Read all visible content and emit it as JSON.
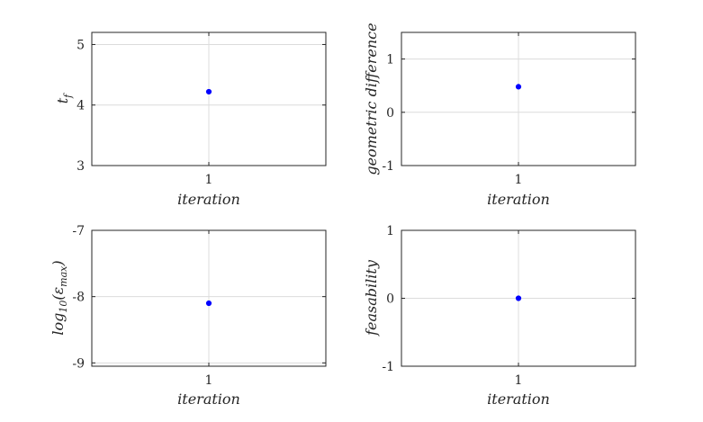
{
  "chart_data": [
    {
      "type": "scatter",
      "xlabel": "iteration",
      "ylabel": "t_f",
      "x_ticks": [
        "1"
      ],
      "y_ticks": [
        "3",
        "4",
        "5"
      ],
      "ylim": [
        3,
        5.2
      ],
      "grid": true,
      "series": [
        {
          "x": [
            1
          ],
          "y": [
            4.22
          ],
          "color": "#0000ff"
        }
      ]
    },
    {
      "type": "scatter",
      "xlabel": "iteration",
      "ylabel": "geometric difference",
      "x_ticks": [
        "1"
      ],
      "y_ticks": [
        "-1",
        "0",
        "1"
      ],
      "ylim": [
        -1,
        1.5
      ],
      "grid": true,
      "series": [
        {
          "x": [
            1
          ],
          "y": [
            0.48
          ],
          "color": "#0000ff"
        }
      ]
    },
    {
      "type": "scatter",
      "xlabel": "iteration",
      "ylabel": "log10(ε_max)",
      "x_ticks": [
        "1"
      ],
      "y_ticks": [
        "-9",
        "-8",
        "-7"
      ],
      "ylim": [
        -9.05,
        -7
      ],
      "grid": true,
      "series": [
        {
          "x": [
            1
          ],
          "y": [
            -8.1
          ],
          "color": "#0000ff"
        }
      ]
    },
    {
      "type": "scatter",
      "xlabel": "iteration",
      "ylabel": "feasability",
      "x_ticks": [
        "1"
      ],
      "y_ticks": [
        "-1",
        "0",
        "1"
      ],
      "ylim": [
        -1,
        1
      ],
      "grid": true,
      "series": [
        {
          "x": [
            1
          ],
          "y": [
            0
          ],
          "color": "#0000ff"
        }
      ]
    }
  ]
}
